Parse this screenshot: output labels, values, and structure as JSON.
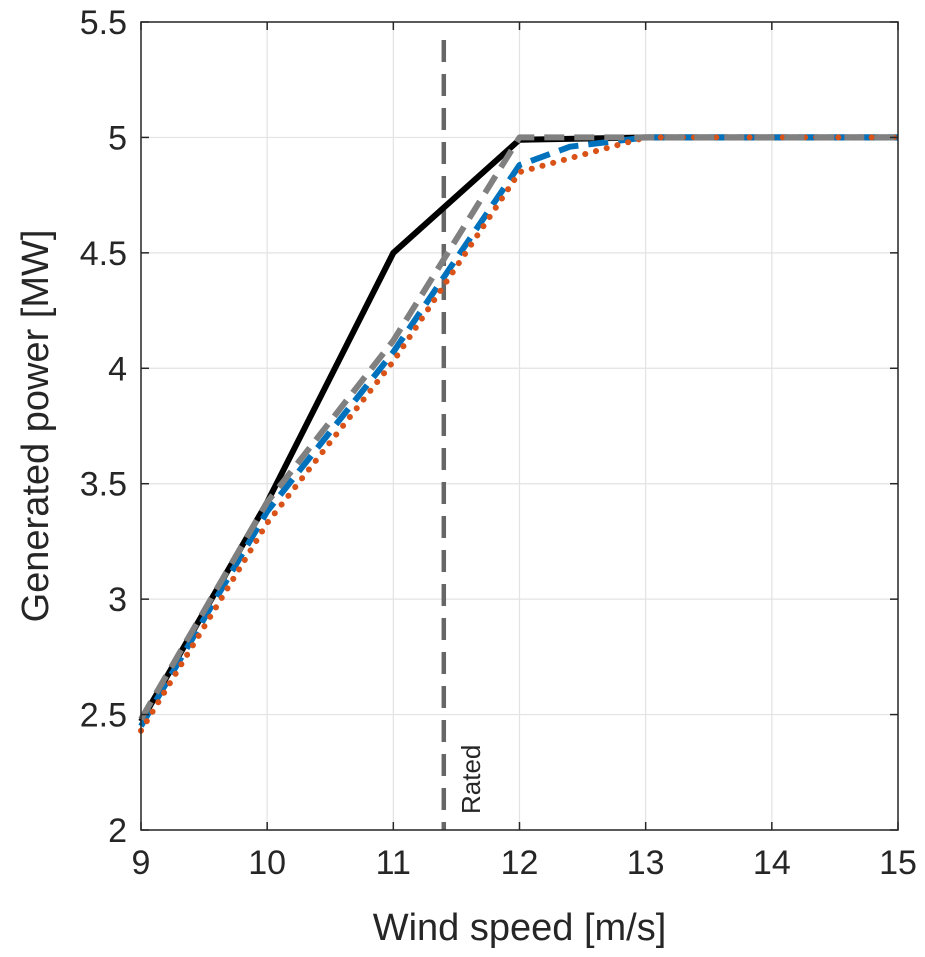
{
  "chart_data": {
    "type": "line",
    "title": "",
    "xlabel": "Wind speed [m/s]",
    "ylabel": "Generated power [MW]",
    "xlim": [
      9,
      15
    ],
    "ylim": [
      2,
      5.5
    ],
    "xticks": [
      9,
      10,
      11,
      12,
      13,
      14,
      15
    ],
    "yticks": [
      2,
      2.5,
      3,
      3.5,
      4,
      4.5,
      5,
      5.5
    ],
    "xtick_labels": [
      "9",
      "10",
      "11",
      "12",
      "13",
      "14",
      "15"
    ],
    "ytick_labels": [
      "2",
      "2.5",
      "3",
      "3.5",
      "4",
      "4.5",
      "5",
      "5.5"
    ],
    "grid": true,
    "series": [
      {
        "x": [
          9,
          10,
          11,
          12,
          13,
          14,
          15
        ],
        "y": [
          2.47,
          3.42,
          4.5,
          4.99,
          5.0,
          5.0,
          5.0
        ],
        "color": "#000000",
        "style": "solid"
      },
      {
        "x": [
          9,
          10,
          11,
          12,
          12.4,
          13,
          14,
          15
        ],
        "y": [
          2.45,
          3.38,
          4.07,
          4.88,
          4.96,
          5.0,
          5.0,
          5.0
        ],
        "color": "#0072BD",
        "style": "dashed"
      },
      {
        "x": [
          9,
          10,
          11,
          12,
          13,
          14,
          15
        ],
        "y": [
          2.43,
          3.33,
          4.03,
          4.85,
          5.0,
          5.0,
          5.0
        ],
        "color": "#D95319",
        "style": "dotted"
      },
      {
        "x": [
          9,
          10,
          11,
          12,
          13,
          14,
          15
        ],
        "y": [
          2.48,
          3.42,
          4.12,
          5.0,
          5.0,
          5.0,
          5.0
        ],
        "color": "#808080",
        "style": "dashed"
      }
    ],
    "annotations": [
      {
        "type": "vline",
        "x": 11.4,
        "label": "Rated",
        "color": "#666666",
        "style": "dashed"
      }
    ]
  }
}
